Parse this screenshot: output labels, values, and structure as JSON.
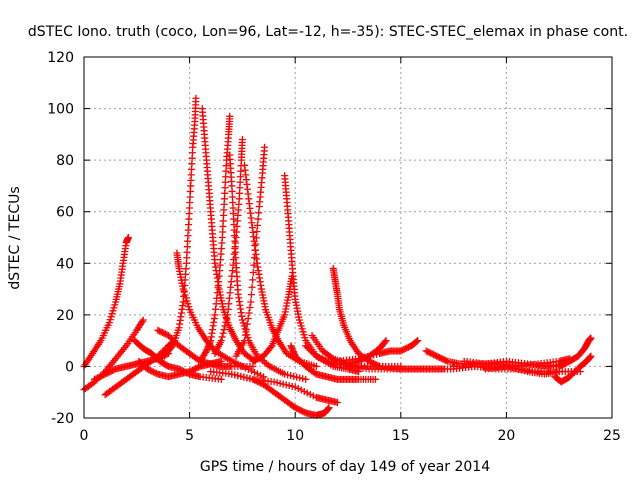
{
  "chart_data": {
    "type": "scatter",
    "title": "dSTEC Iono. truth (coco, Lon=96, Lat=-12, h=-35): STEC-STEC_elemax in phase cont.",
    "xlabel": "GPS time / hours of day 149 of year 2014",
    "ylabel": "dSTEC  / TECUs",
    "xlim": [
      0,
      25
    ],
    "ylim": [
      -20,
      120
    ],
    "xticks": [
      "0",
      "5",
      "10",
      "15",
      "20",
      "25"
    ],
    "yticks": [
      "-20",
      "0",
      "20",
      "40",
      "60",
      "80",
      "100",
      "120"
    ],
    "xtick_values": [
      0,
      5,
      10,
      15,
      20,
      25
    ],
    "ytick_values": [
      -20,
      0,
      20,
      40,
      60,
      80,
      100,
      120
    ],
    "grid": true,
    "marker": "+",
    "color": "#ff0000",
    "series": [
      {
        "points": [
          [
            0.0,
            0
          ],
          [
            0.4,
            5
          ],
          [
            0.8,
            10
          ],
          [
            1.2,
            17
          ],
          [
            1.5,
            25
          ],
          [
            1.7,
            32
          ],
          [
            1.85,
            40
          ],
          [
            2.0,
            48
          ],
          [
            2.1,
            50
          ]
        ]
      },
      {
        "points": [
          [
            0.0,
            -9
          ],
          [
            0.5,
            -6
          ],
          [
            1.0,
            -2
          ],
          [
            1.5,
            3
          ],
          [
            2.0,
            8
          ],
          [
            2.5,
            14
          ],
          [
            2.8,
            18
          ]
        ]
      },
      {
        "points": [
          [
            1.0,
            -11
          ],
          [
            1.5,
            -8
          ],
          [
            2.0,
            -5
          ],
          [
            2.5,
            -2
          ],
          [
            3.0,
            1
          ],
          [
            3.5,
            4
          ],
          [
            4.0,
            8
          ],
          [
            4.3,
            10
          ]
        ]
      },
      {
        "points": [
          [
            0.5,
            -5
          ],
          [
            1.0,
            -3
          ],
          [
            1.5,
            -1
          ],
          [
            2.0,
            0
          ],
          [
            2.5,
            1
          ],
          [
            3.0,
            2
          ],
          [
            3.5,
            3
          ],
          [
            4.0,
            5
          ]
        ]
      },
      {
        "points": [
          [
            2.4,
            10
          ],
          [
            2.8,
            7
          ],
          [
            3.2,
            5
          ],
          [
            3.6,
            2
          ],
          [
            4.0,
            0
          ],
          [
            4.5,
            -1
          ],
          [
            5.0,
            -3
          ],
          [
            5.5,
            -4
          ],
          [
            6.5,
            -5
          ]
        ]
      },
      {
        "points": [
          [
            2.6,
            2
          ],
          [
            3.0,
            -1
          ],
          [
            3.5,
            -3
          ],
          [
            4.0,
            -4
          ],
          [
            4.5,
            -3
          ],
          [
            5.0,
            -2
          ],
          [
            5.5,
            0
          ],
          [
            6.0,
            1
          ],
          [
            6.5,
            2
          ]
        ]
      },
      {
        "points": [
          [
            3.5,
            14
          ],
          [
            4.0,
            12
          ],
          [
            4.5,
            8
          ],
          [
            5.0,
            5
          ],
          [
            5.5,
            2
          ],
          [
            6.0,
            1
          ],
          [
            6.5,
            0
          ],
          [
            7.0,
            0
          ],
          [
            8.0,
            0
          ]
        ]
      },
      {
        "points": [
          [
            4.4,
            44
          ],
          [
            4.5,
            38
          ],
          [
            4.7,
            30
          ],
          [
            5.0,
            22
          ],
          [
            5.4,
            15
          ],
          [
            5.8,
            10
          ],
          [
            6.2,
            6
          ],
          [
            6.8,
            3
          ],
          [
            7.5,
            0
          ],
          [
            8.5,
            -4
          ]
        ]
      },
      {
        "points": [
          [
            3.8,
            4
          ],
          [
            4.2,
            8
          ],
          [
            4.5,
            15
          ],
          [
            4.7,
            25
          ],
          [
            4.85,
            40
          ],
          [
            4.95,
            55
          ],
          [
            5.05,
            70
          ],
          [
            5.15,
            85
          ],
          [
            5.25,
            95
          ],
          [
            5.3,
            104
          ]
        ]
      },
      {
        "points": [
          [
            5.6,
            100
          ],
          [
            5.7,
            90
          ],
          [
            5.8,
            80
          ],
          [
            5.9,
            70
          ],
          [
            6.0,
            60
          ],
          [
            6.1,
            50
          ],
          [
            6.2,
            40
          ],
          [
            6.4,
            30
          ],
          [
            6.6,
            22
          ],
          [
            6.9,
            15
          ],
          [
            7.2,
            10
          ],
          [
            7.6,
            5
          ],
          [
            8.1,
            2
          ]
        ]
      },
      {
        "points": [
          [
            5.5,
            2
          ],
          [
            5.8,
            6
          ],
          [
            6.0,
            10
          ],
          [
            6.2,
            20
          ],
          [
            6.4,
            35
          ],
          [
            6.55,
            50
          ],
          [
            6.65,
            65
          ],
          [
            6.75,
            80
          ],
          [
            6.85,
            90
          ],
          [
            6.9,
            97
          ]
        ]
      },
      {
        "points": [
          [
            6.9,
            82
          ],
          [
            7.0,
            70
          ],
          [
            7.1,
            55
          ],
          [
            7.2,
            40
          ],
          [
            7.3,
            28
          ],
          [
            7.5,
            18
          ],
          [
            7.8,
            10
          ],
          [
            8.2,
            4
          ],
          [
            8.8,
            0
          ],
          [
            9.5,
            -3
          ],
          [
            10.5,
            -5
          ]
        ]
      },
      {
        "points": [
          [
            6.2,
            5
          ],
          [
            6.5,
            10
          ],
          [
            6.8,
            20
          ],
          [
            7.0,
            35
          ],
          [
            7.2,
            50
          ],
          [
            7.35,
            65
          ],
          [
            7.45,
            80
          ],
          [
            7.5,
            88
          ]
        ]
      },
      {
        "points": [
          [
            7.6,
            78
          ],
          [
            7.8,
            65
          ],
          [
            8.0,
            52
          ],
          [
            8.2,
            40
          ],
          [
            8.4,
            30
          ],
          [
            8.6,
            22
          ],
          [
            8.9,
            15
          ],
          [
            9.2,
            10
          ],
          [
            9.6,
            5
          ],
          [
            10.2,
            2
          ],
          [
            11.0,
            0
          ]
        ]
      },
      {
        "points": [
          [
            7.2,
            4
          ],
          [
            7.6,
            10
          ],
          [
            7.9,
            25
          ],
          [
            8.1,
            45
          ],
          [
            8.3,
            62
          ],
          [
            8.45,
            75
          ],
          [
            8.55,
            85
          ]
        ]
      },
      {
        "points": [
          [
            9.5,
            74
          ],
          [
            9.6,
            65
          ],
          [
            9.7,
            55
          ],
          [
            9.8,
            45
          ],
          [
            9.9,
            35
          ],
          [
            10.0,
            26
          ],
          [
            10.2,
            18
          ],
          [
            10.5,
            10
          ],
          [
            11.0,
            4
          ],
          [
            11.8,
            0
          ],
          [
            12.5,
            -1
          ],
          [
            13.0,
            -2
          ]
        ]
      },
      {
        "points": [
          [
            8.0,
            2
          ],
          [
            8.5,
            4
          ],
          [
            8.9,
            8
          ],
          [
            9.2,
            14
          ],
          [
            9.5,
            20
          ],
          [
            9.7,
            28
          ],
          [
            9.85,
            35
          ]
        ]
      },
      {
        "points": [
          [
            6.0,
            -2
          ],
          [
            7.0,
            -3
          ],
          [
            8.0,
            -5
          ],
          [
            8.5,
            -7
          ],
          [
            9.0,
            -10
          ],
          [
            9.5,
            -13
          ],
          [
            10.0,
            -16
          ],
          [
            10.5,
            -18
          ],
          [
            11.0,
            -19
          ],
          [
            11.4,
            -18
          ],
          [
            11.6,
            -16
          ]
        ]
      },
      {
        "points": [
          [
            7.0,
            -3
          ],
          [
            8.0,
            -5
          ],
          [
            9.0,
            -6
          ],
          [
            10.0,
            -8
          ],
          [
            11.0,
            -12
          ],
          [
            11.5,
            -13
          ],
          [
            12.0,
            -14
          ]
        ]
      },
      {
        "points": [
          [
            9.8,
            8
          ],
          [
            10.0,
            4
          ],
          [
            10.5,
            0
          ],
          [
            11.0,
            -3
          ],
          [
            11.5,
            -4
          ],
          [
            12.0,
            -5
          ],
          [
            12.5,
            -5
          ],
          [
            13.0,
            -5
          ],
          [
            13.8,
            -5
          ]
        ]
      },
      {
        "points": [
          [
            11.8,
            38
          ],
          [
            11.9,
            33
          ],
          [
            12.0,
            28
          ],
          [
            12.1,
            22
          ],
          [
            12.3,
            16
          ],
          [
            12.6,
            10
          ],
          [
            13.0,
            5
          ],
          [
            13.5,
            2
          ],
          [
            14.0,
            0
          ],
          [
            15.0,
            0
          ]
        ]
      },
      {
        "points": [
          [
            10.5,
            8
          ],
          [
            11.0,
            4
          ],
          [
            11.5,
            2
          ],
          [
            12.0,
            1
          ],
          [
            13.0,
            0
          ],
          [
            14.0,
            0
          ],
          [
            15.0,
            -1
          ],
          [
            16.0,
            -1
          ],
          [
            17.0,
            -1
          ]
        ]
      },
      {
        "points": [
          [
            10.8,
            12
          ],
          [
            11.3,
            6
          ],
          [
            11.8,
            3
          ],
          [
            12.5,
            1
          ],
          [
            13.0,
            2
          ],
          [
            13.5,
            4
          ],
          [
            14.0,
            7
          ],
          [
            14.3,
            10
          ]
        ]
      },
      {
        "points": [
          [
            12.0,
            2
          ],
          [
            13.0,
            3
          ],
          [
            14.0,
            5
          ],
          [
            14.5,
            6
          ],
          [
            15.0,
            6
          ],
          [
            15.5,
            8
          ],
          [
            15.8,
            10
          ]
        ]
      },
      {
        "points": [
          [
            12.5,
            0
          ],
          [
            13.5,
            -1
          ],
          [
            14.5,
            -1
          ],
          [
            15.5,
            -1
          ],
          [
            16.5,
            -1
          ],
          [
            17.5,
            -1
          ],
          [
            18.5,
            0
          ]
        ]
      },
      {
        "points": [
          [
            16.2,
            6
          ],
          [
            16.7,
            4
          ],
          [
            17.2,
            2
          ],
          [
            17.8,
            1
          ],
          [
            18.5,
            1
          ],
          [
            19.5,
            1
          ],
          [
            20.5,
            0
          ],
          [
            21.5,
            1
          ],
          [
            22.5,
            2
          ],
          [
            23.0,
            3
          ]
        ]
      },
      {
        "points": [
          [
            17.5,
            0
          ],
          [
            18.5,
            0
          ],
          [
            19.5,
            -1
          ],
          [
            20.5,
            -1
          ],
          [
            21.5,
            -2
          ],
          [
            22.5,
            -2
          ],
          [
            23.5,
            -2
          ]
        ]
      },
      {
        "points": [
          [
            18.0,
            2
          ],
          [
            19.0,
            1
          ],
          [
            20.0,
            2
          ],
          [
            21.0,
            1
          ],
          [
            22.0,
            0
          ],
          [
            22.8,
            1
          ]
        ]
      },
      {
        "points": [
          [
            19.0,
            -1
          ],
          [
            20.0,
            0
          ],
          [
            21.0,
            -2
          ],
          [
            21.8,
            -3
          ],
          [
            22.5,
            -2
          ]
        ]
      },
      {
        "points": [
          [
            22.3,
            -4
          ],
          [
            22.6,
            -6
          ],
          [
            23.0,
            -4
          ],
          [
            23.5,
            0
          ],
          [
            23.8,
            2
          ],
          [
            24.0,
            4
          ]
        ]
      },
      {
        "points": [
          [
            21.5,
            0
          ],
          [
            22.5,
            0
          ],
          [
            23.0,
            2
          ],
          [
            23.4,
            4
          ],
          [
            23.7,
            7
          ],
          [
            23.9,
            10
          ],
          [
            24.0,
            11
          ]
        ]
      }
    ]
  }
}
